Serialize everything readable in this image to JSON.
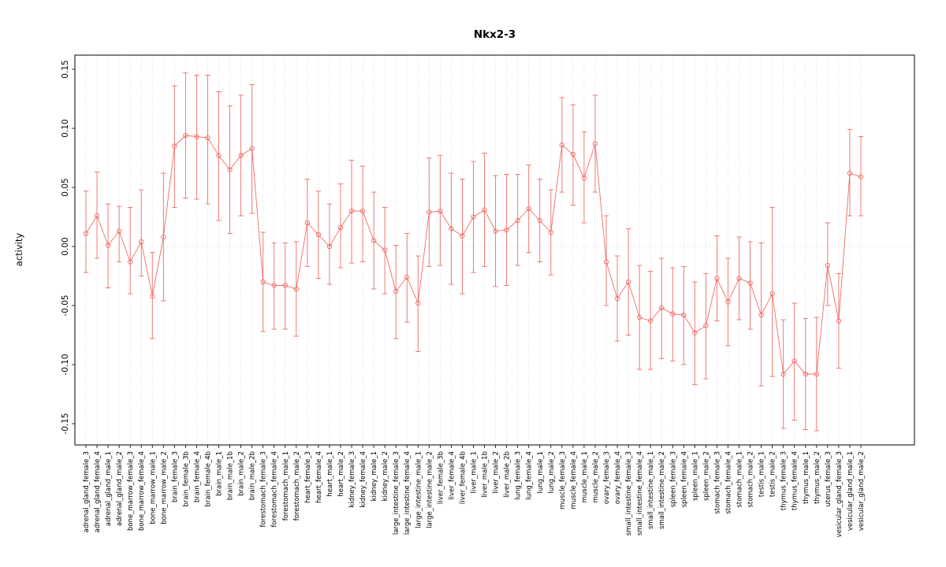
{
  "chart_data": {
    "type": "line",
    "subtype": "points-with-error-bars",
    "title": "Nkx2-3",
    "xlabel": "",
    "ylabel": "activity",
    "ylim": [
      -0.168,
      0.162
    ],
    "yticks": [
      -0.15,
      -0.1,
      -0.05,
      0.0,
      0.05,
      0.1,
      0.15
    ],
    "grid": "dotted vertical line at every category; dotted horizontal line at y=0",
    "legend": "none",
    "colors": {
      "series": "#ef6d67",
      "grid": "#cfcfcf",
      "axis": "#000000"
    },
    "categories": [
      "adrenal_gland_female_3",
      "adrenal_gland_female_4",
      "adrenal_gland_male_1",
      "adrenal_gland_male_2",
      "bone_marrow_female_3",
      "bone_marrow_female_4",
      "bone_marrow_male_1",
      "bone_marrow_male_2",
      "brain_female_3",
      "brain_female_3b",
      "brain_female_4",
      "brain_female_4b",
      "brain_male_1",
      "brain_male_1b",
      "brain_male_2",
      "brain_male_2b",
      "forestomach_female_3",
      "forestomach_female_4",
      "forestomach_male_1",
      "forestomach_male_2",
      "heart_female_3",
      "heart_female_4",
      "heart_male_1",
      "heart_male_2",
      "kidney_female_3",
      "kidney_female_4",
      "kidney_male_1",
      "kidney_male_2",
      "large_intestine_female_3",
      "large_intestine_female_4",
      "large_intestine_male_1",
      "large_intestine_male_2",
      "liver_female_3b",
      "liver_female_4",
      "liver_female_4b",
      "liver_male_1",
      "liver_male_1b",
      "liver_male_2",
      "liver_male_2b",
      "lung_female_3",
      "lung_female_4",
      "lung_male_1",
      "lung_male_2",
      "muscle_female_3",
      "muscle_female_4",
      "muscle_male_1",
      "muscle_male_2",
      "ovary_female_3",
      "ovary_female_4",
      "small_intestine_female_3",
      "small_intestine_female_4",
      "small_intestine_male_1",
      "small_intestine_male_2",
      "spleen_female_3",
      "spleen_female_4",
      "spleen_male_1",
      "spleen_male_2",
      "stomach_female_3",
      "stomach_female_4",
      "stomach_male_1",
      "stomach_male_2",
      "testis_male_1",
      "testis_male_2",
      "thymus_female_3",
      "thymus_female_4",
      "thymus_male_1",
      "thymus_male_2",
      "uterus_female_3",
      "vesicular_gland_female_3",
      "vesicular_gland_male_1",
      "vesicular_gland_male_2"
    ],
    "values": [
      0.011,
      0.026,
      0.001,
      0.013,
      -0.013,
      0.004,
      -0.042,
      0.008,
      0.085,
      0.094,
      0.093,
      0.092,
      0.077,
      0.065,
      0.077,
      0.083,
      -0.03,
      -0.033,
      -0.033,
      -0.036,
      0.02,
      0.01,
      0.0,
      0.016,
      0.03,
      0.03,
      0.005,
      -0.003,
      -0.038,
      -0.026,
      -0.048,
      0.029,
      0.03,
      0.015,
      0.009,
      0.025,
      0.031,
      0.013,
      0.014,
      0.022,
      0.032,
      0.022,
      0.012,
      0.086,
      0.078,
      0.058,
      0.087,
      -0.013,
      -0.044,
      -0.03,
      -0.06,
      -0.063,
      -0.052,
      -0.057,
      -0.058,
      -0.073,
      -0.067,
      -0.027,
      -0.047,
      -0.027,
      -0.031,
      -0.058,
      -0.04,
      -0.108,
      -0.097,
      -0.108,
      -0.108,
      -0.016,
      -0.063,
      0.062,
      0.059
    ],
    "lower": [
      -0.022,
      -0.01,
      -0.035,
      -0.013,
      -0.04,
      -0.025,
      -0.078,
      -0.046,
      0.033,
      0.041,
      0.04,
      0.036,
      0.022,
      0.011,
      0.026,
      0.028,
      -0.072,
      -0.07,
      -0.07,
      -0.076,
      -0.017,
      -0.027,
      -0.032,
      -0.018,
      -0.014,
      -0.013,
      -0.036,
      -0.04,
      -0.078,
      -0.064,
      -0.089,
      -0.017,
      -0.016,
      -0.032,
      -0.04,
      -0.022,
      -0.017,
      -0.034,
      -0.033,
      -0.016,
      -0.005,
      -0.013,
      -0.024,
      0.046,
      0.035,
      0.02,
      0.046,
      -0.05,
      -0.08,
      -0.075,
      -0.104,
      -0.104,
      -0.095,
      -0.097,
      -0.1,
      -0.117,
      -0.112,
      -0.063,
      -0.084,
      -0.062,
      -0.07,
      -0.118,
      -0.11,
      -0.154,
      -0.147,
      -0.155,
      -0.156,
      -0.05,
      -0.103,
      0.026,
      0.026
    ],
    "upper": [
      0.047,
      0.063,
      0.036,
      0.034,
      0.033,
      0.048,
      -0.005,
      0.062,
      0.136,
      0.147,
      0.145,
      0.145,
      0.131,
      0.119,
      0.128,
      0.137,
      0.012,
      0.003,
      0.003,
      0.004,
      0.057,
      0.047,
      0.036,
      0.053,
      0.073,
      0.068,
      0.046,
      0.033,
      0.001,
      0.011,
      -0.008,
      0.075,
      0.077,
      0.062,
      0.057,
      0.072,
      0.079,
      0.06,
      0.061,
      0.061,
      0.069,
      0.057,
      0.048,
      0.126,
      0.12,
      0.097,
      0.128,
      0.026,
      -0.008,
      0.015,
      -0.016,
      -0.021,
      -0.01,
      -0.018,
      -0.017,
      -0.03,
      -0.023,
      0.009,
      -0.01,
      0.008,
      0.004,
      0.003,
      0.033,
      -0.062,
      -0.048,
      -0.061,
      -0.06,
      0.02,
      -0.023,
      0.099,
      0.093
    ]
  }
}
